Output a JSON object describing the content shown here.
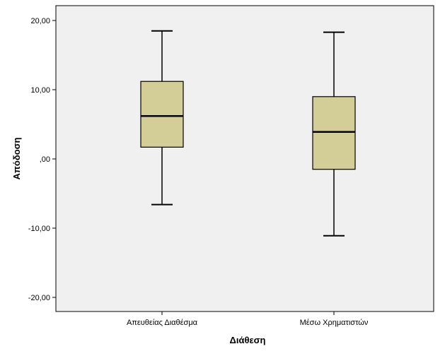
{
  "chart_data": {
    "type": "boxplot",
    "xlabel": "Διάθεση",
    "ylabel": "Απόδοση",
    "ylim": [
      -22.5,
      22.5
    ],
    "yticks": [
      -20,
      -10,
      0,
      10,
      20
    ],
    "ytick_labels": [
      "-20,00",
      "-10,00",
      ",00",
      "10,00",
      "20,00"
    ],
    "categories": [
      "Απευθείας Διαθέσμα",
      "Μέσω Χρηματιστών"
    ],
    "boxes": [
      {
        "category": "Απευθείας Διαθέσμα",
        "whisker_low": -6.6,
        "q1": 1.7,
        "median": 6.2,
        "q3": 11.2,
        "whisker_high": 18.5
      },
      {
        "category": "Μέσω Χρηματιστών",
        "whisker_low": -11.1,
        "q1": -1.5,
        "median": 3.9,
        "q3": 9.0,
        "whisker_high": 18.3
      }
    ],
    "grid": false,
    "colors": {
      "plot_background": "#f0f0f0",
      "box_fill": "#d3ce97",
      "line": "#000000"
    }
  }
}
